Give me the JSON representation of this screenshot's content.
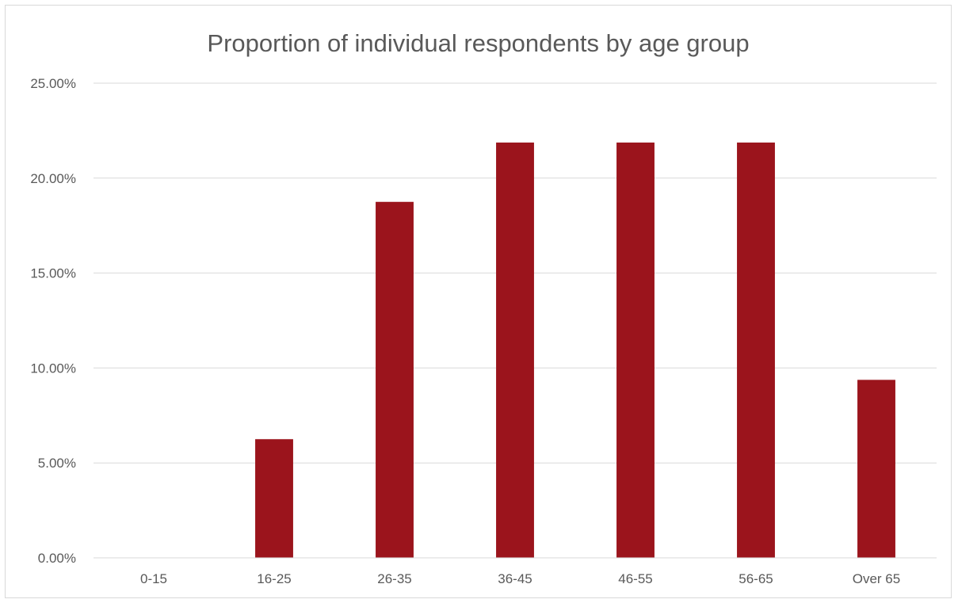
{
  "chart_data": {
    "type": "bar",
    "title": "Proportion of individual respondents by age group",
    "xlabel": "",
    "ylabel": "",
    "categories": [
      "0-15",
      "16-25",
      "26-35",
      "36-45",
      "46-55",
      "56-65",
      "Over 65"
    ],
    "values": [
      0.0,
      6.25,
      18.75,
      21.875,
      21.875,
      21.875,
      9.375
    ],
    "ylim": [
      0,
      25
    ],
    "yticks": [
      0,
      5,
      10,
      15,
      20,
      25
    ],
    "ytick_labels": [
      "0.00%",
      "5.00%",
      "10.00%",
      "15.00%",
      "20.00%",
      "25.00%"
    ],
    "grid": true,
    "legend": "none",
    "bar_color": "#9b141c"
  }
}
